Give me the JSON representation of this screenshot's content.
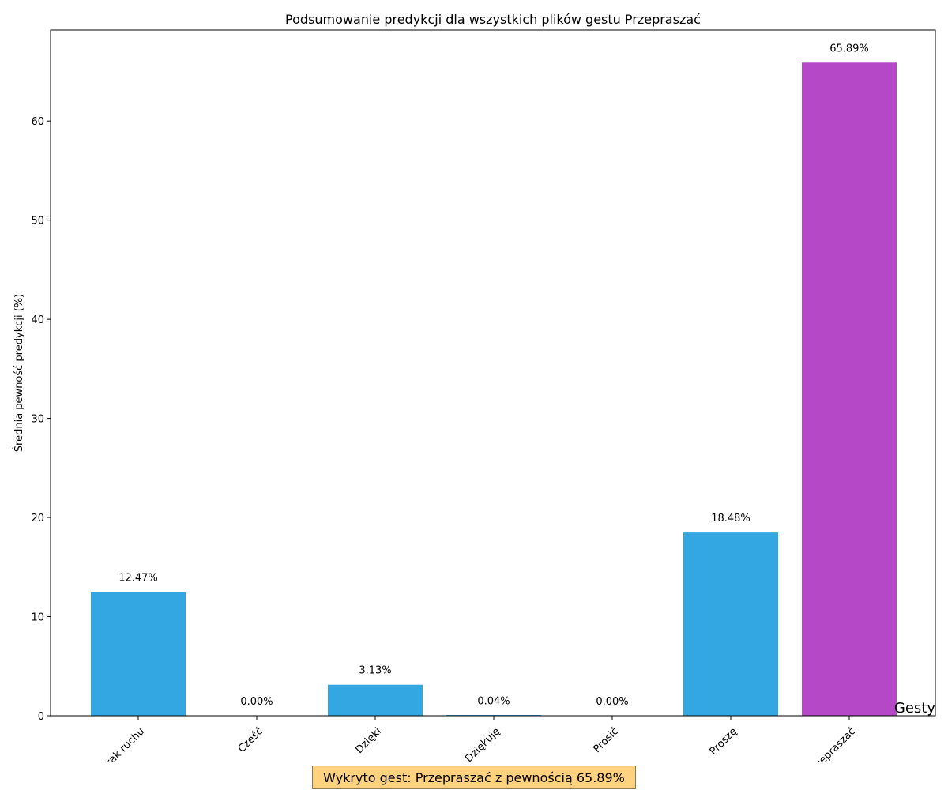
{
  "chart_data": {
    "type": "bar",
    "title": "Podsumowanie predykcji dla wszystkich plików gestu Przepraszać",
    "xlabel": "Gesty",
    "ylabel": "Średnia pewność predykcji (%)",
    "categories": [
      "Brak ruchu",
      "Cześć",
      "Dzięki",
      "Dziękuję",
      "Prosić",
      "Proszę",
      "Przepraszać"
    ],
    "values": [
      12.47,
      0.0,
      3.13,
      0.04,
      0.0,
      18.48,
      65.89
    ],
    "data_labels": [
      "12.47%",
      "0.00%",
      "3.13%",
      "0.04%",
      "0.00%",
      "18.48%",
      "65.89%"
    ],
    "ylim": [
      0,
      69.18
    ],
    "yticks": [
      0,
      10,
      20,
      30,
      40,
      50,
      60
    ],
    "highlighted_category": "Przepraszać",
    "colors": {
      "default": "#33a7e2",
      "highlight": "#b448c6"
    },
    "grid": false,
    "legend": "none"
  },
  "banner": {
    "text": "Wykryto gest: Przepraszać z pewnością 65.89%"
  }
}
